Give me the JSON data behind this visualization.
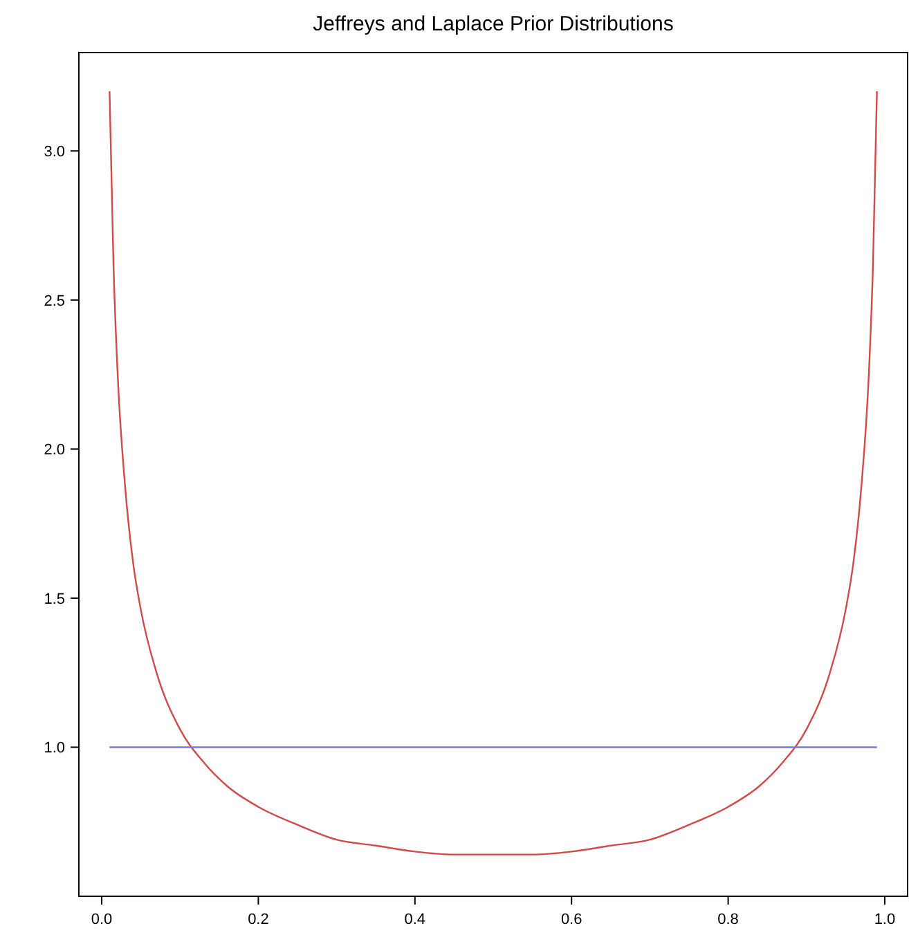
{
  "chart_data": {
    "type": "line",
    "title": "Jeffreys and Laplace Prior Distributions",
    "xlim": [
      -0.0292,
      1.0292
    ],
    "ylim": [
      0.5,
      3.33
    ],
    "xticks": [
      {
        "value": 0,
        "label": "0.0"
      },
      {
        "value": 0.2,
        "label": "0.2"
      },
      {
        "value": 0.4,
        "label": "0.4"
      },
      {
        "value": 0.6,
        "label": "0.6"
      },
      {
        "value": 0.8,
        "label": "0.8"
      },
      {
        "value": 1,
        "label": "1.0"
      }
    ],
    "yticks": [
      {
        "value": 1,
        "label": "1.0"
      },
      {
        "value": 1.5,
        "label": "1.5"
      },
      {
        "value": 2,
        "label": "2.0"
      },
      {
        "value": 2.5,
        "label": "2.5"
      },
      {
        "value": 3,
        "label": "3.0"
      }
    ],
    "grid": false,
    "line_style": "solid",
    "marker": "none",
    "series": [
      {
        "color": "#d04a4a",
        "x": [
          0.01,
          0.015,
          0.02,
          0.03,
          0.04,
          0.05,
          0.07,
          0.1,
          0.13,
          0.16,
          0.2,
          0.25,
          0.3,
          0.35,
          0.4,
          0.45,
          0.5,
          0.55,
          0.6,
          0.65,
          0.7,
          0.75,
          0.8,
          0.84,
          0.87,
          0.9,
          0.93,
          0.95,
          0.96,
          0.97,
          0.98,
          0.985,
          0.99
        ],
        "values": [
          3.2,
          2.62,
          2.27,
          1.87,
          1.62,
          1.46,
          1.25,
          1.06,
          0.95,
          0.87,
          0.8,
          0.74,
          0.69,
          0.67,
          0.65,
          0.64,
          0.64,
          0.64,
          0.65,
          0.67,
          0.69,
          0.74,
          0.8,
          0.87,
          0.95,
          1.06,
          1.25,
          1.46,
          1.62,
          1.87,
          2.27,
          2.62,
          3.2
        ]
      },
      {
        "color": "#7a78d8",
        "x": [
          0.01,
          0.99
        ],
        "values": [
          1,
          1
        ]
      }
    ]
  }
}
